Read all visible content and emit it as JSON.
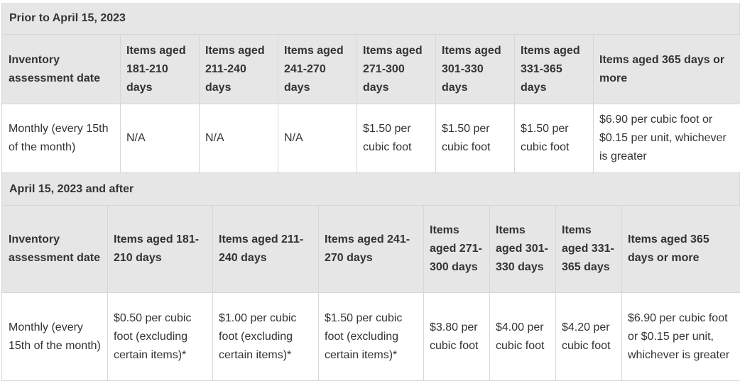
{
  "sections": [
    {
      "title": "Prior to April 15, 2023",
      "headers": [
        "Inventory assessment date",
        "Items aged 181-210 days",
        "Items aged 211-240 days",
        "Items aged 241-270 days",
        "Items aged 271-300 days",
        "Items aged 301-330 days",
        "Items aged 331-365 days",
        "Items aged 365 days or more"
      ],
      "row": [
        "Monthly (every 15th of the month)",
        "N/A",
        "N/A",
        "N/A",
        "$1.50 per cubic foot",
        "$1.50 per cubic foot",
        "$1.50 per cubic foot",
        "$6.90 per cubic foot or $0.15 per unit, whichever is greater"
      ]
    },
    {
      "title": "April 15, 2023 and after",
      "headers": [
        "Inventory assessment date",
        "Items aged 181-210 days",
        "Items aged 211-240 days",
        "Items aged 241-270 days",
        "Items aged 271-300 days",
        "Items aged 301-330 days",
        "Items aged 331-365 days",
        "Items aged 365 days or more"
      ],
      "row": [
        "Monthly (every 15th of the month)",
        "$0.50 per cubic foot (excluding certain items)*",
        "$1.00 per cubic foot (excluding certain items)*",
        "$1.50 per cubic foot (excluding certain items)*",
        "$3.80 per cubic foot",
        "$4.00 per cubic foot",
        "$4.20 per cubic foot",
        "$6.90 per cubic foot or $0.15 per unit, whichever is greater"
      ]
    }
  ]
}
